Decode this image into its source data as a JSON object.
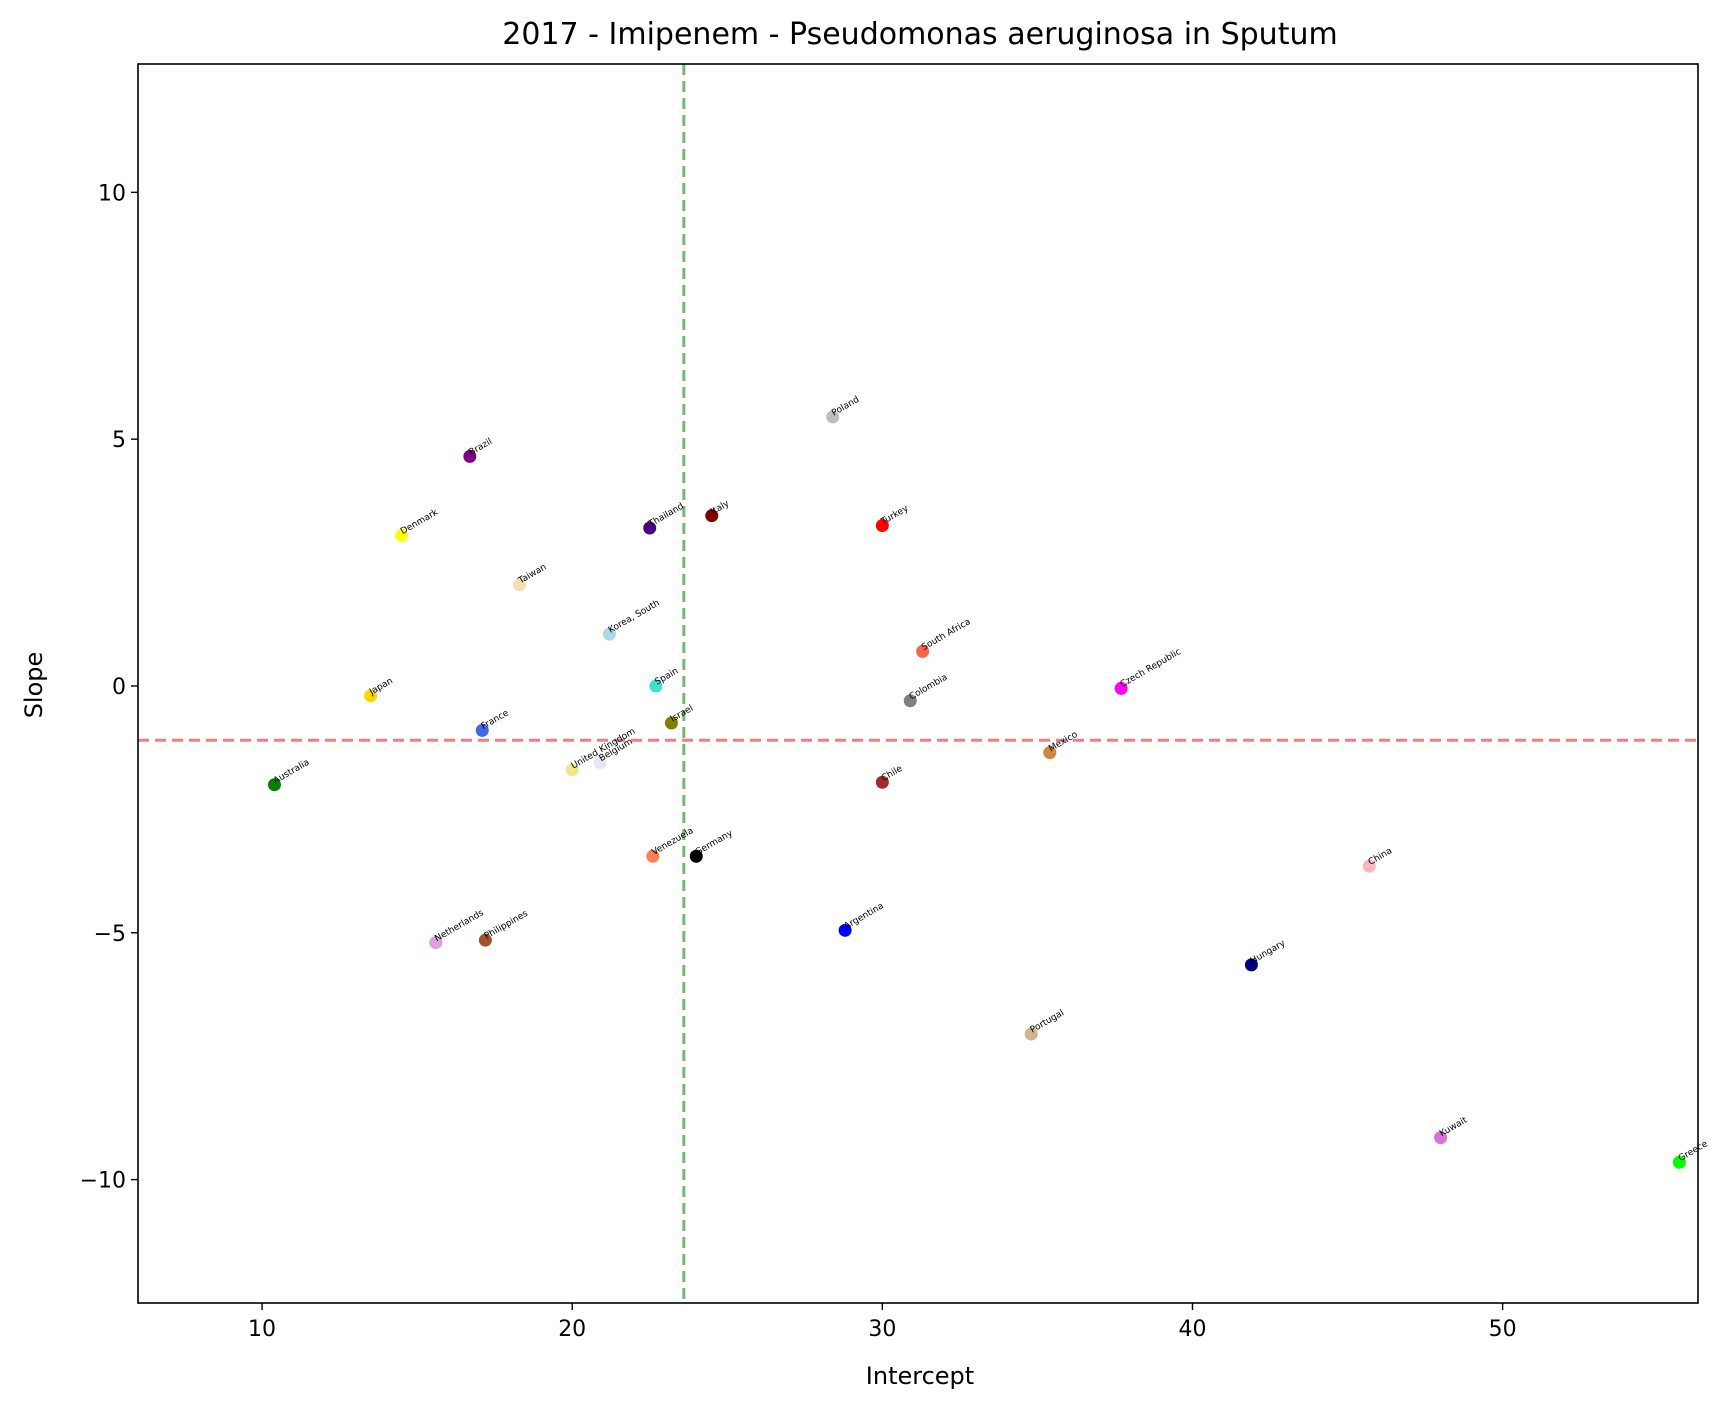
{
  "chart_data": {
    "type": "scatter",
    "title": "2017 - Imipenem - Pseudomonas aeruginosa in Sputum",
    "xlabel": "Intercept",
    "ylabel": "Slope",
    "xlim": [
      6.0,
      56.3
    ],
    "ylim": [
      -12.5,
      12.6
    ],
    "xticks": [
      10,
      20,
      30,
      40,
      50
    ],
    "xtick_labels": [
      "10",
      "20",
      "30",
      "40",
      "50"
    ],
    "yticks": [
      10,
      5,
      0,
      -5,
      -10
    ],
    "ytick_labels": [
      "10",
      "5",
      "0",
      "−5",
      "−10"
    ],
    "grid": false,
    "reference_lines": {
      "vertical_x": 23.6,
      "vertical_color": "#76b876",
      "horizontal_y": -1.1,
      "horizontal_color": "#f08080"
    },
    "points": [
      {
        "label": "Poland",
        "x": 28.4,
        "y": 5.45,
        "color": "#bdbdbd"
      },
      {
        "label": "Brazil",
        "x": 16.7,
        "y": 4.65,
        "color": "#800080"
      },
      {
        "label": "Thailand",
        "x": 22.5,
        "y": 3.2,
        "color": "#4b0082"
      },
      {
        "label": "Italy",
        "x": 24.5,
        "y": 3.45,
        "color": "#800000"
      },
      {
        "label": "Turkey",
        "x": 30.0,
        "y": 3.25,
        "color": "#ff0000"
      },
      {
        "label": "Denmark",
        "x": 14.5,
        "y": 3.05,
        "color": "#ffff00"
      },
      {
        "label": "Taiwan",
        "x": 18.3,
        "y": 2.05,
        "color": "#f5deb3"
      },
      {
        "label": "Korea, South",
        "x": 21.2,
        "y": 1.05,
        "color": "#add8e6"
      },
      {
        "label": "South Africa",
        "x": 31.3,
        "y": 0.7,
        "color": "#ff6347"
      },
      {
        "label": "Spain",
        "x": 22.7,
        "y": 0.0,
        "color": "#40e0d0"
      },
      {
        "label": "Czech Republic",
        "x": 37.7,
        "y": -0.05,
        "color": "#ff00ff"
      },
      {
        "label": "Japan",
        "x": 13.5,
        "y": -0.2,
        "color": "#ffd700"
      },
      {
        "label": "Colombia",
        "x": 30.9,
        "y": -0.3,
        "color": "#808080"
      },
      {
        "label": "Israel",
        "x": 23.2,
        "y": -0.75,
        "color": "#808000"
      },
      {
        "label": "France",
        "x": 17.1,
        "y": -0.9,
        "color": "#4169e1"
      },
      {
        "label": "Mexico",
        "x": 35.4,
        "y": -1.35,
        "color": "#cd853f"
      },
      {
        "label": "United Kingdom",
        "x": 20.0,
        "y": -1.7,
        "color": "#f0e68c"
      },
      {
        "label": "Belgium",
        "x": 20.9,
        "y": -1.55,
        "color": "#e6e6fa"
      },
      {
        "label": "Australia",
        "x": 10.4,
        "y": -2.0,
        "color": "#008000"
      },
      {
        "label": "Chile",
        "x": 30.0,
        "y": -1.95,
        "color": "#a52a2a"
      },
      {
        "label": "Venezuela",
        "x": 22.6,
        "y": -3.45,
        "color": "#ff7f50"
      },
      {
        "label": "Germany",
        "x": 24.0,
        "y": -3.45,
        "color": "#000000"
      },
      {
        "label": "China",
        "x": 45.7,
        "y": -3.65,
        "color": "#ffb6c1"
      },
      {
        "label": "Argentina",
        "x": 28.8,
        "y": -4.95,
        "color": "#0000ff"
      },
      {
        "label": "Netherlands",
        "x": 15.6,
        "y": -5.2,
        "color": "#dda0dd"
      },
      {
        "label": "Philippines",
        "x": 17.2,
        "y": -5.15,
        "color": "#a0522d"
      },
      {
        "label": "Hungary",
        "x": 41.9,
        "y": -5.65,
        "color": "#000080"
      },
      {
        "label": "Portugal",
        "x": 34.8,
        "y": -7.05,
        "color": "#d2b48c"
      },
      {
        "label": "Kuwait",
        "x": 48.0,
        "y": -9.15,
        "color": "#da70d6"
      },
      {
        "label": "Greece",
        "x": 55.7,
        "y": -9.65,
        "color": "#00ff00"
      }
    ]
  }
}
